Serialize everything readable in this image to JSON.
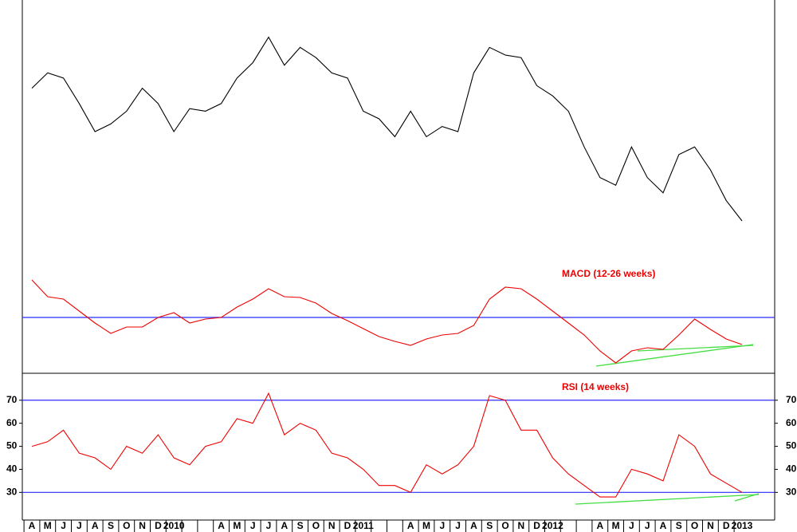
{
  "chart_data": [
    {
      "type": "line",
      "color": "#000000",
      "ylim": [
        0,
        100
      ],
      "values": [
        67,
        73,
        71,
        61,
        50,
        53,
        58,
        67,
        61,
        50,
        59,
        58,
        61,
        71,
        77,
        87,
        76,
        83,
        79,
        73,
        71,
        58,
        55,
        48,
        58,
        48,
        52,
        50,
        73,
        83,
        80,
        79,
        68,
        64,
        58,
        44,
        32,
        29,
        44,
        32,
        26,
        41,
        44,
        35,
        23,
        15
      ]
    },
    {
      "type": "line",
      "title": "MACD (12-26 weeks)",
      "color": "#ee0000",
      "ylim": [
        -7,
        7
      ],
      "ref_lines": [
        0
      ],
      "ref_color": "#2b2bff",
      "values": [
        4.7,
        2.6,
        2.3,
        0.8,
        -0.7,
        -2.0,
        -1.2,
        -1.2,
        0,
        0.6,
        -0.7,
        -0.2,
        0,
        1.3,
        2.3,
        3.6,
        2.6,
        2.5,
        1.8,
        0.5,
        -0.4,
        -1.4,
        -2.4,
        -3.0,
        -3.5,
        -2.7,
        -2.2,
        -2.0,
        -1.0,
        2.3,
        3.8,
        3.6,
        2.3,
        0.8,
        -0.7,
        -2.2,
        -4.2,
        -5.7,
        -4.2,
        -3.8,
        -4.0,
        -2.2,
        -0.2,
        -1.5,
        -2.7,
        -3.4
      ]
    },
    {
      "type": "line",
      "title": "RSI (14 weeks)",
      "color": "#ee0000",
      "ylim": [
        18,
        81
      ],
      "yticks": [
        30,
        40,
        50,
        60,
        70
      ],
      "ref_lines": [
        70,
        30
      ],
      "ref_color": "#2b2bff",
      "categories": [
        "A",
        "M",
        "J",
        "J",
        "A",
        "S",
        "O",
        "N",
        "D",
        "2010",
        null,
        null,
        "A",
        "M",
        "J",
        "J",
        "A",
        "S",
        "O",
        "N",
        "D",
        "2011",
        null,
        null,
        "A",
        "M",
        "J",
        "J",
        "A",
        "S",
        "O",
        "N",
        "D",
        "2012",
        null,
        null,
        "A",
        "M",
        "J",
        "J",
        "A",
        "S",
        "O",
        "N",
        "D",
        "2013"
      ],
      "values": [
        50,
        52,
        57,
        47,
        45,
        40,
        50,
        47,
        55,
        45,
        42,
        50,
        52,
        62,
        60,
        73,
        55,
        60,
        57,
        47,
        45,
        40,
        33,
        33,
        30,
        42,
        38,
        42,
        50,
        72,
        70,
        57,
        57,
        45,
        38,
        33,
        28,
        28,
        40,
        38,
        35,
        55,
        50,
        38,
        34,
        30
      ]
    }
  ]
}
